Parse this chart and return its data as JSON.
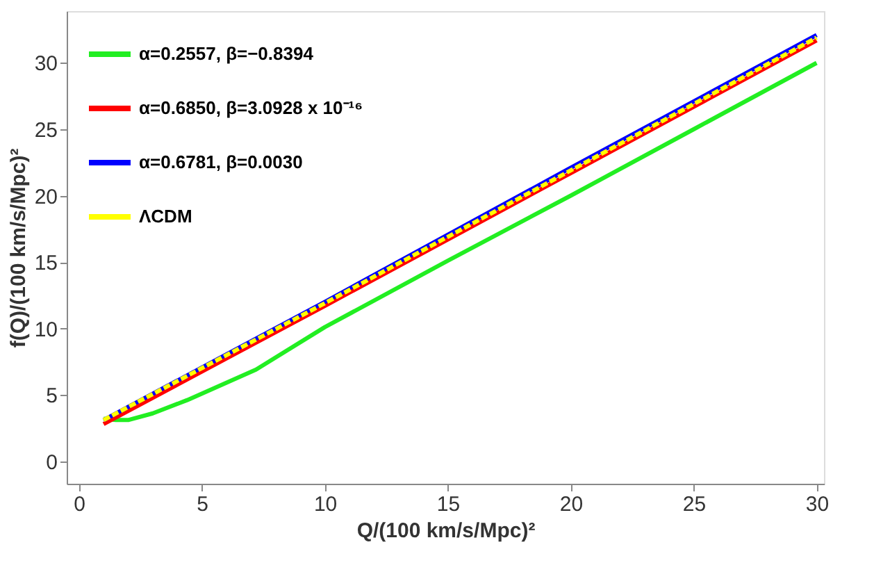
{
  "chart_data": {
    "type": "line",
    "xlabel": "Q/(100 km/s/Mpc)²",
    "ylabel": "f(Q)/(100 km/s/Mpc)²",
    "xlim": [
      -0.5,
      30.3
    ],
    "ylim": [
      -1.7,
      33.9
    ],
    "xticks": [
      0,
      5,
      10,
      15,
      20,
      25,
      30
    ],
    "yticks": [
      0,
      5,
      10,
      15,
      20,
      25,
      30
    ],
    "grid": false,
    "legend": "top left",
    "marker": "none",
    "series": [
      {
        "name": "α=0.2557, β=−0.8394",
        "color": "#22ee22",
        "line_style": "solid",
        "x": [
          1,
          1.5,
          2,
          3,
          4.4,
          7.2,
          10,
          15,
          20,
          25,
          30
        ],
        "values": [
          3.2,
          3.1,
          3.1,
          3.6,
          4.6,
          6.9,
          10.1,
          15.1,
          20.0,
          25.0,
          30.0
        ]
      },
      {
        "name": "α=0.6850, β=3.0928 x 10⁻¹⁶",
        "color": "#ff0000",
        "line_style": "solid",
        "x": [
          1,
          10,
          20,
          30
        ],
        "values": [
          2.8,
          11.7,
          21.7,
          31.7
        ]
      },
      {
        "name": "α=0.6781, β=0.0030",
        "color": "#0000ff",
        "line_style": "solid",
        "x": [
          1,
          10,
          20,
          30
        ],
        "values": [
          3.1,
          12.0,
          22.1,
          32.1
        ]
      },
      {
        "name": "ΛCDM",
        "color": "#ffff00",
        "line_style": "dashed",
        "x": [
          1,
          10,
          20,
          30
        ],
        "values": [
          3.1,
          11.9,
          21.9,
          31.9
        ]
      }
    ]
  }
}
